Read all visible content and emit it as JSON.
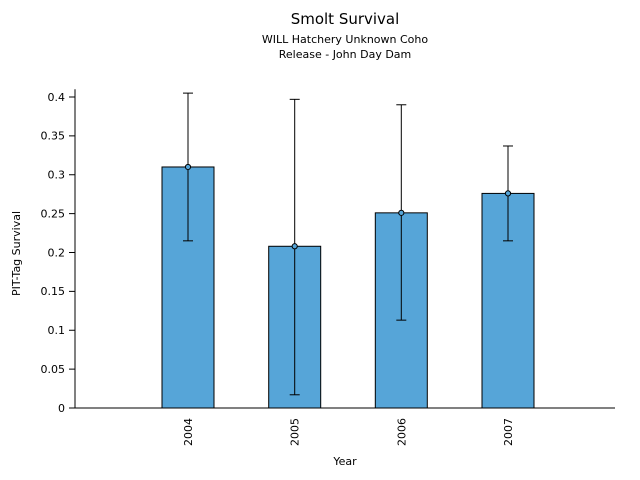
{
  "chart_data": {
    "type": "bar",
    "title": "Smolt Survival",
    "subtitle": [
      "WILL Hatchery Unknown Coho",
      "Release - John Day Dam"
    ],
    "categories": [
      "2004",
      "2005",
      "2006",
      "2007"
    ],
    "values": [
      0.31,
      0.208,
      0.251,
      0.276
    ],
    "error_low": [
      0.215,
      0.017,
      0.113,
      0.215
    ],
    "error_high": [
      0.405,
      0.397,
      0.39,
      0.337
    ],
    "xlabel": "Year",
    "ylabel": "PIT-Tag Survival",
    "ylim": [
      0,
      0.42
    ],
    "yticks": [
      0,
      0.05,
      0.1,
      0.15,
      0.2,
      0.25,
      0.3,
      0.35,
      0.4
    ],
    "ytick_labels": [
      "0",
      "0.05",
      "0.1",
      "0.15",
      "0.2",
      "0.25",
      "0.3",
      "0.35",
      "0.4"
    ],
    "bar_color": "#56a5d8",
    "bar_edge_color": "#000000",
    "grid": false,
    "legend": null
  }
}
